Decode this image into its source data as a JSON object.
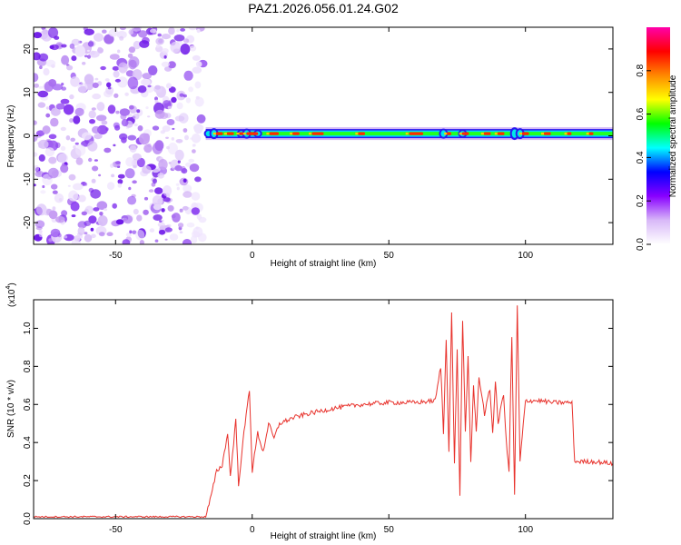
{
  "title": "PAZ1.2026.056.01.24.G02",
  "chart_data": [
    {
      "type": "heatmap",
      "xlabel": "Height of straight line (km)",
      "ylabel": "Frequency (Hz)",
      "xlim": [
        -80,
        132
      ],
      "ylim": [
        -25,
        25
      ],
      "xticks": [
        -50,
        0,
        50,
        100
      ],
      "yticks": [
        -20,
        -10,
        0,
        10,
        20
      ],
      "noise_region_x": [
        -80,
        -18
      ],
      "carrier_start_x": -17,
      "carrier_frequency": 0.5,
      "colorbar": {
        "label": "Normalized spectral amplitude",
        "range": [
          0,
          1
        ],
        "ticks": [
          "0.0",
          "0.2",
          "0.4",
          "0.6",
          "0.8"
        ],
        "colors": [
          "#ffffff",
          "#d8b8f8",
          "#8800ff",
          "#0000ff",
          "#00ffff",
          "#00ff00",
          "#ffff00",
          "#ff8800",
          "#ff0000",
          "#ff00aa"
        ]
      }
    },
    {
      "type": "line",
      "xlabel": "Height of straight line (km)",
      "ylabel": "SNR (10 * v/v)",
      "scale_note": "(x10",
      "scale_exp": "4",
      "y_unit_scale": 10000,
      "xlim": [
        -80,
        132
      ],
      "ylim": [
        0,
        1.15
      ],
      "xticks": [
        -50,
        0,
        50,
        100
      ],
      "yticks": [
        "0.0",
        "0.2",
        "0.4",
        "0.6",
        "0.8",
        "1.0"
      ],
      "series": [
        {
          "color": "#e8322c",
          "x": [
            -80,
            -17,
            -15,
            -13,
            -11,
            -9,
            -8,
            -6,
            -5,
            -3,
            -1,
            0,
            2,
            4,
            6,
            8,
            10,
            15,
            20,
            30,
            40,
            50,
            60,
            67,
            69,
            70,
            71,
            72,
            73,
            74,
            75,
            76,
            77,
            78,
            79,
            80,
            81,
            82,
            83,
            85,
            87,
            88,
            89,
            90,
            92,
            93,
            94,
            95,
            96,
            97,
            98,
            100,
            105,
            110,
            117,
            118,
            120,
            125,
            132
          ],
          "y": [
            0.01,
            0.01,
            0.12,
            0.25,
            0.28,
            0.45,
            0.22,
            0.52,
            0.18,
            0.45,
            0.68,
            0.25,
            0.45,
            0.35,
            0.5,
            0.42,
            0.5,
            0.53,
            0.55,
            0.58,
            0.6,
            0.61,
            0.61,
            0.62,
            0.8,
            0.45,
            0.95,
            0.35,
            1.08,
            0.3,
            0.88,
            0.12,
            1.05,
            0.45,
            0.85,
            0.3,
            0.7,
            0.45,
            0.75,
            0.55,
            0.68,
            0.45,
            0.72,
            0.5,
            0.66,
            0.4,
            0.25,
            0.95,
            0.12,
            1.12,
            0.3,
            0.62,
            0.62,
            0.61,
            0.61,
            0.3,
            0.3,
            0.3,
            0.29
          ]
        }
      ]
    }
  ]
}
